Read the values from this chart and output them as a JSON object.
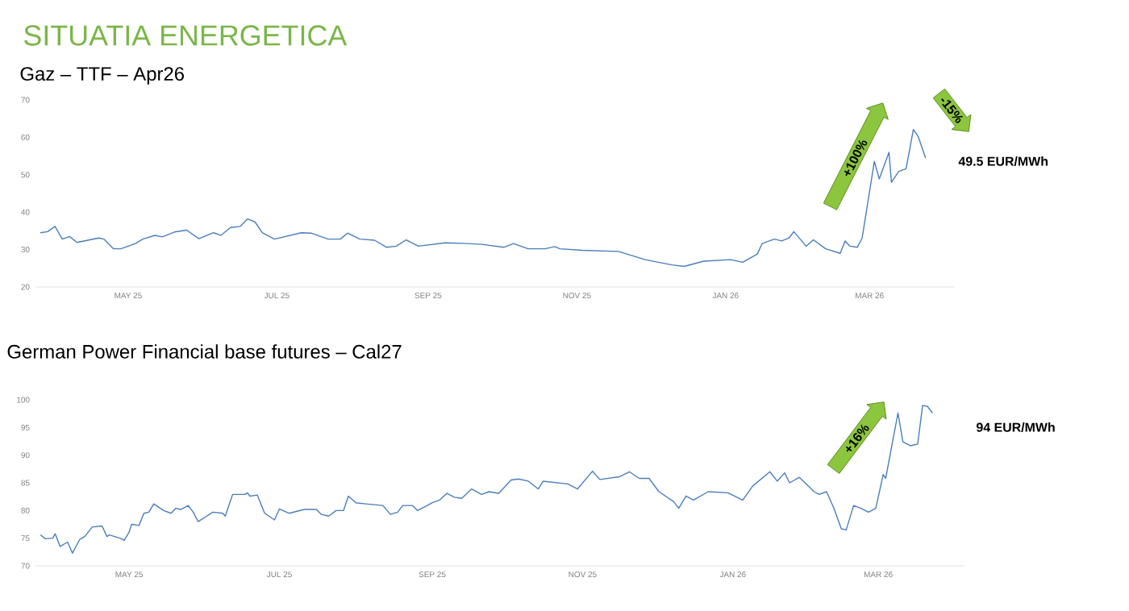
{
  "chart_data": [
    {
      "type": "line",
      "title": "SITUATIA ENERGETICA",
      "subtitle": "Gaz – TTF – Apr26",
      "x": [
        "2025-03-26",
        "2025-03-29",
        "2025-04-01",
        "2025-04-04",
        "2025-04-07",
        "2025-04-10",
        "2025-04-19",
        "2025-04-21",
        "2025-04-25",
        "2025-04-28",
        "2025-05-04",
        "2025-05-07",
        "2025-05-12",
        "2025-05-15",
        "2025-05-20",
        "2025-05-25",
        "2025-05-30",
        "2025-06-05",
        "2025-06-08",
        "2025-06-12",
        "2025-06-16",
        "2025-06-19",
        "2025-06-22",
        "2025-06-25",
        "2025-06-30",
        "2025-07-11",
        "2025-07-15",
        "2025-07-22",
        "2025-07-27",
        "2025-07-30",
        "2025-08-04",
        "2025-08-10",
        "2025-08-15",
        "2025-08-19",
        "2025-08-23",
        "2025-08-28",
        "2025-09-08",
        "2025-09-17",
        "2025-09-23",
        "2025-10-02",
        "2025-10-06",
        "2025-10-12",
        "2025-10-19",
        "2025-10-23",
        "2025-10-25",
        "2025-11-03",
        "2025-11-18",
        "2025-11-29",
        "2025-12-10",
        "2025-12-15",
        "2025-12-23",
        "2026-01-03",
        "2026-01-08",
        "2026-01-14",
        "2026-01-16",
        "2026-01-21",
        "2026-01-24",
        "2026-01-27",
        "2026-01-29",
        "2026-02-03",
        "2026-02-06",
        "2026-02-11",
        "2026-02-17",
        "2026-02-19",
        "2026-02-21",
        "2026-02-24",
        "2026-02-26",
        "2026-03-03",
        "2026-03-05",
        "2026-03-09",
        "2026-03-10",
        "2026-03-13",
        "2026-03-16",
        "2026-03-19",
        "2026-03-21",
        "2026-03-24"
      ],
      "series": [
        {
          "color": "#4a7ebb",
          "values": [
            34.5,
            34.8,
            36.2,
            32.8,
            33.5,
            31.9,
            33.1,
            32.8,
            30.2,
            30.2,
            31.6,
            32.8,
            33.8,
            33.4,
            34.7,
            35.2,
            32.9,
            34.5,
            33.8,
            35.9,
            36.2,
            38.2,
            37.4,
            34.5,
            32.8,
            34.5,
            34.4,
            32.8,
            32.8,
            34.4,
            32.8,
            32.5,
            30.6,
            30.9,
            32.6,
            30.9,
            31.8,
            31.6,
            31.4,
            30.6,
            31.6,
            30.2,
            30.2,
            30.8,
            30.2,
            29.8,
            29.5,
            27.3,
            25.9,
            25.5,
            26.9,
            27.3,
            26.6,
            28.8,
            31.6,
            32.8,
            32.3,
            33.1,
            34.8,
            30.9,
            32.6,
            30.2,
            29.0,
            32.3,
            30.9,
            30.6,
            33.1,
            53.6,
            48.9,
            56.0,
            48.0,
            50.9,
            51.6,
            62.1,
            60.2,
            54.5
          ]
        }
      ],
      "xlim": [
        "2025-03-24",
        "2026-04-05"
      ],
      "ylim": [
        20,
        70
      ],
      "xticks": [
        {
          "value": "2025-05-01",
          "label": "MAY 25"
        },
        {
          "value": "2025-07-01",
          "label": "JUL 25"
        },
        {
          "value": "2025-09-01",
          "label": "SEP 25"
        },
        {
          "value": "2025-11-01",
          "label": "NOV 25"
        },
        {
          "value": "2026-01-01",
          "label": "JAN 26"
        },
        {
          "value": "2026-03-01",
          "label": "MAR 26"
        }
      ],
      "yticks": [
        20,
        30,
        40,
        50,
        60,
        70
      ],
      "annotations": [
        "+100%",
        "-15%",
        "49.5 EUR/MWh"
      ]
    },
    {
      "type": "line",
      "title": "German Power Financial base futures – Cal27",
      "x": [
        "2025-03-26",
        "2025-03-28",
        "2025-03-31",
        "2025-04-01",
        "2025-04-03",
        "2025-04-06",
        "2025-04-08",
        "2025-04-11",
        "2025-04-13",
        "2025-04-16",
        "2025-04-20",
        "2025-04-22",
        "2025-04-23",
        "2025-04-28",
        "2025-04-29",
        "2025-05-01",
        "2025-05-02",
        "2025-05-05",
        "2025-05-07",
        "2025-05-09",
        "2025-05-11",
        "2025-05-15",
        "2025-05-18",
        "2025-05-20",
        "2025-05-22",
        "2025-05-25",
        "2025-05-27",
        "2025-05-29",
        "2025-06-04",
        "2025-06-08",
        "2025-06-09",
        "2025-06-12",
        "2025-06-17",
        "2025-06-18",
        "2025-06-19",
        "2025-06-22",
        "2025-06-25",
        "2025-06-29",
        "2025-07-01",
        "2025-07-05",
        "2025-07-11",
        "2025-07-16",
        "2025-07-18",
        "2025-07-21",
        "2025-07-24",
        "2025-07-27",
        "2025-07-29",
        "2025-08-01",
        "2025-08-05",
        "2025-08-12",
        "2025-08-15",
        "2025-08-18",
        "2025-08-20",
        "2025-08-24",
        "2025-08-26",
        "2025-08-30",
        "2025-09-01",
        "2025-09-04",
        "2025-09-07",
        "2025-09-10",
        "2025-09-13",
        "2025-09-17",
        "2025-09-21",
        "2025-09-24",
        "2025-09-28",
        "2025-10-03",
        "2025-10-06",
        "2025-10-10",
        "2025-10-14",
        "2025-10-16",
        "2025-10-26",
        "2025-10-30",
        "2025-11-05",
        "2025-11-08",
        "2025-11-16",
        "2025-11-20",
        "2025-11-24",
        "2025-11-28",
        "2025-12-02",
        "2025-12-08",
        "2025-12-10",
        "2025-12-13",
        "2025-12-16",
        "2025-12-22",
        "2025-12-30",
        "2026-01-05",
        "2026-01-09",
        "2026-01-16",
        "2026-01-19",
        "2026-01-22",
        "2026-01-24",
        "2026-01-28",
        "2026-02-03",
        "2026-02-05",
        "2026-02-08",
        "2026-02-11",
        "2026-02-14",
        "2026-02-16",
        "2026-02-19",
        "2026-02-22",
        "2026-02-25",
        "2026-02-28",
        "2026-03-03",
        "2026-03-04",
        "2026-03-09",
        "2026-03-11",
        "2026-03-14",
        "2026-03-17",
        "2026-03-19",
        "2026-03-21",
        "2026-03-23"
      ],
      "series": [
        {
          "color": "#4a7ebb",
          "values": [
            75.6,
            74.9,
            75.0,
            75.8,
            73.5,
            74.3,
            72.3,
            74.8,
            75.3,
            77.0,
            77.2,
            75.3,
            75.6,
            74.9,
            74.6,
            76.1,
            77.5,
            77.3,
            79.5,
            79.7,
            81.2,
            80.0,
            79.5,
            80.4,
            80.2,
            80.9,
            79.7,
            78.0,
            79.7,
            79.5,
            79.0,
            82.9,
            82.9,
            83.2,
            82.6,
            82.8,
            79.5,
            78.3,
            80.3,
            79.5,
            80.2,
            80.2,
            79.3,
            79.0,
            80.0,
            80.0,
            82.6,
            81.4,
            81.2,
            80.9,
            79.3,
            79.7,
            80.9,
            80.9,
            80.0,
            80.9,
            81.4,
            81.9,
            83.1,
            82.4,
            82.2,
            83.9,
            82.9,
            83.4,
            83.1,
            85.5,
            85.7,
            85.3,
            83.9,
            85.3,
            84.8,
            83.9,
            87.1,
            85.6,
            86.1,
            87.0,
            85.8,
            85.8,
            83.4,
            81.6,
            80.4,
            82.6,
            81.9,
            83.4,
            83.2,
            81.9,
            84.4,
            87.0,
            85.3,
            86.8,
            85.0,
            86.0,
            83.4,
            82.9,
            83.4,
            80.4,
            76.7,
            76.5,
            80.9,
            80.4,
            79.7,
            80.4,
            86.5,
            85.8,
            97.6,
            92.4,
            91.7,
            92.0,
            99.0,
            98.8,
            97.6
          ]
        }
      ],
      "xlim": [
        "2025-03-24",
        "2026-04-05"
      ],
      "ylim": [
        70,
        100
      ],
      "xticks": [
        {
          "value": "2025-05-01",
          "label": "MAY 25"
        },
        {
          "value": "2025-07-01",
          "label": "JUL 25"
        },
        {
          "value": "2025-09-01",
          "label": "SEP 25"
        },
        {
          "value": "2025-11-01",
          "label": "NOV 25"
        },
        {
          "value": "2026-01-01",
          "label": "JAN 26"
        },
        {
          "value": "2026-03-01",
          "label": "MAR 26"
        }
      ],
      "yticks": [
        70,
        75,
        80,
        85,
        90,
        95,
        100
      ],
      "annotations": [
        "+16%",
        "94 EUR/MWh"
      ]
    }
  ]
}
